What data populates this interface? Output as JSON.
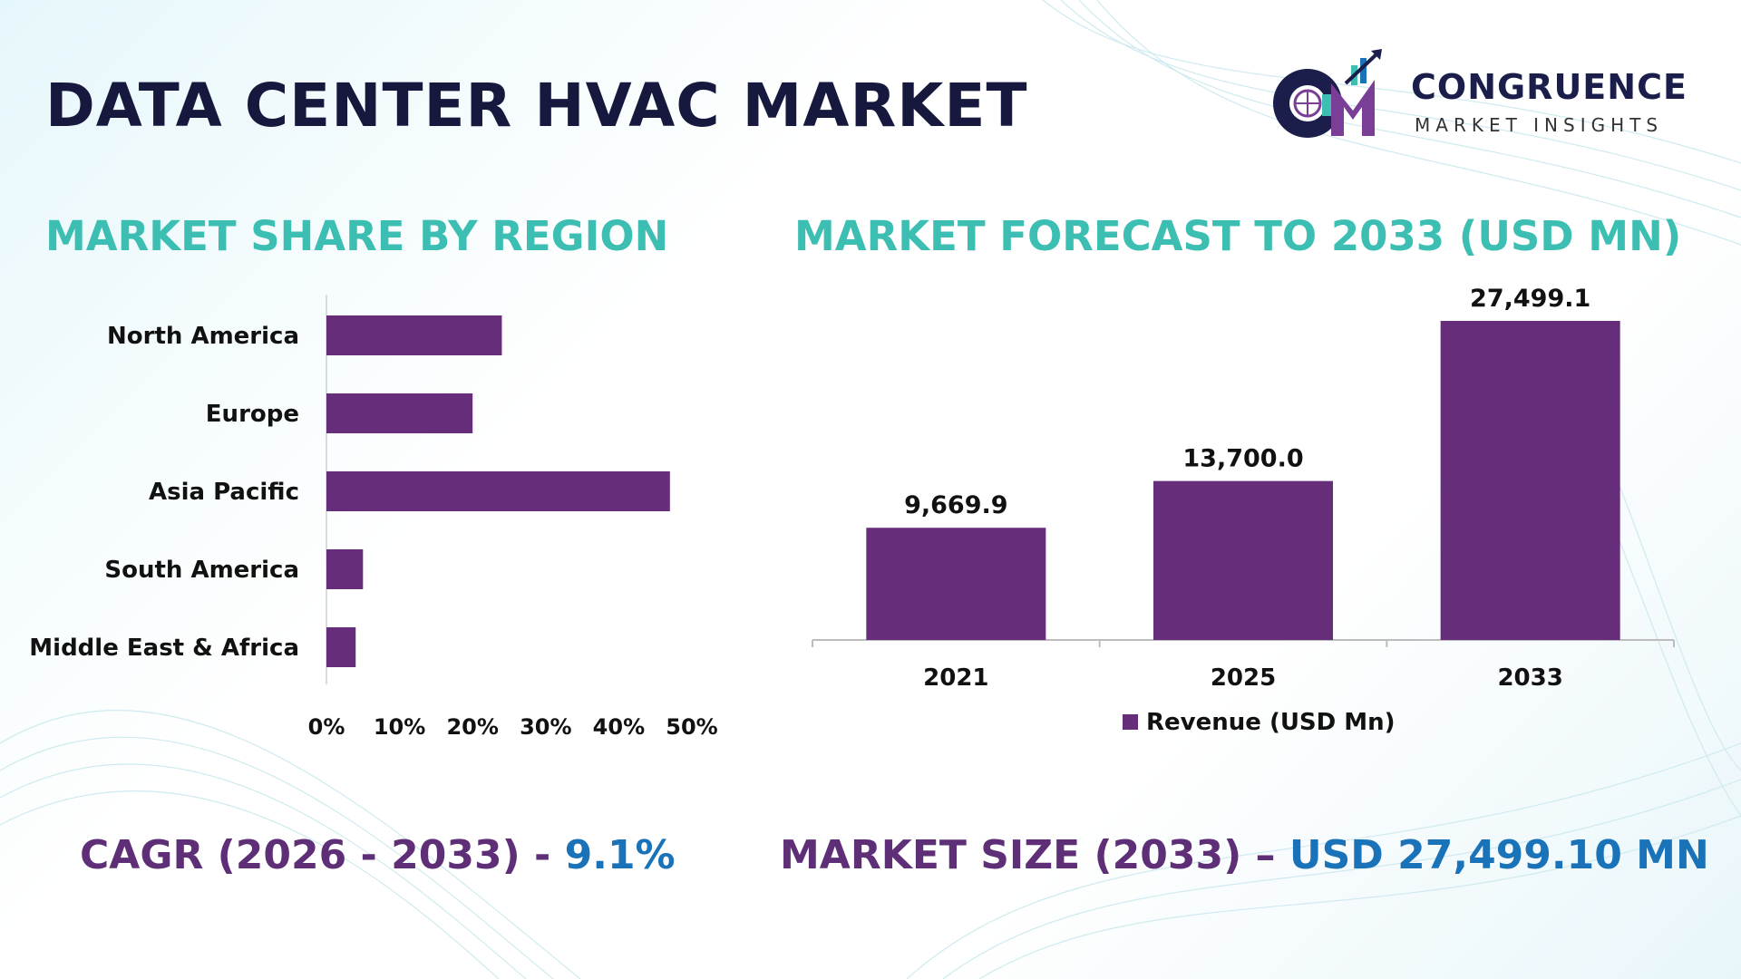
{
  "title": "DATA CENTER HVAC MARKET",
  "logo": {
    "name": "CONGRUENCE",
    "subtitle": "MARKET INSIGHTS",
    "monogram": "CM"
  },
  "colors": {
    "bar": "#652d7a",
    "section_title": "#3cbfb2",
    "title": "#16193d",
    "accent_blue": "#1a73b8",
    "accent_purple": "#5e2f77"
  },
  "chart_data": [
    {
      "type": "bar",
      "orientation": "horizontal",
      "title": "MARKET SHARE BY REGION",
      "categories": [
        "North America",
        "Europe",
        "Asia Pacific",
        "South America",
        "Middle East & Africa"
      ],
      "values": [
        24,
        20,
        47,
        5,
        4
      ],
      "xlim": [
        0,
        50
      ],
      "xticks": [
        "0%",
        "10%",
        "20%",
        "30%",
        "40%",
        "50%"
      ],
      "tick_values": [
        0,
        10,
        20,
        30,
        40,
        50
      ]
    },
    {
      "type": "bar",
      "title": "MARKET FORECAST TO 2033 (USD MN)",
      "categories": [
        "2021",
        "2025",
        "2033"
      ],
      "values": [
        9669.9,
        13700.0,
        27499.1
      ],
      "data_labels": [
        "9,669.9",
        "13,700.0",
        "27,499.1"
      ],
      "legend": "Revenue (USD Mn)",
      "legend_position": "bottom",
      "ylim": [
        0,
        27499.1
      ]
    }
  ],
  "footer": {
    "cagr_label": "CAGR (2026 - 2033) - ",
    "cagr_value": "9.1%",
    "size_label": "MARKET SIZE (2033) – ",
    "size_value": "USD 27,499.10 MN"
  }
}
